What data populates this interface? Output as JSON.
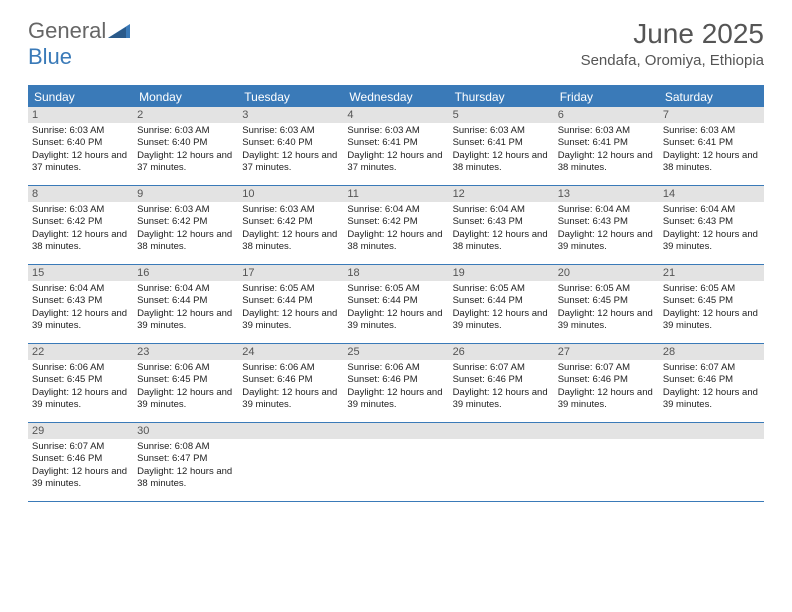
{
  "logo": {
    "text_general": "General",
    "text_blue": "Blue"
  },
  "title": "June 2025",
  "location": "Sendafa, Oromiya, Ethiopia",
  "colors": {
    "header_bar": "#3a7ab8",
    "day_number_bg": "#e3e3e3",
    "border": "#3a7ab8",
    "text_header": "#555",
    "text_body": "#222",
    "logo_blue": "#3a7ab8",
    "logo_gray": "#666"
  },
  "weekdays": [
    "Sunday",
    "Monday",
    "Tuesday",
    "Wednesday",
    "Thursday",
    "Friday",
    "Saturday"
  ],
  "weeks": [
    [
      {
        "n": "1",
        "sunrise": "6:03 AM",
        "sunset": "6:40 PM",
        "daylight": "12 hours and 37 minutes."
      },
      {
        "n": "2",
        "sunrise": "6:03 AM",
        "sunset": "6:40 PM",
        "daylight": "12 hours and 37 minutes."
      },
      {
        "n": "3",
        "sunrise": "6:03 AM",
        "sunset": "6:40 PM",
        "daylight": "12 hours and 37 minutes."
      },
      {
        "n": "4",
        "sunrise": "6:03 AM",
        "sunset": "6:41 PM",
        "daylight": "12 hours and 37 minutes."
      },
      {
        "n": "5",
        "sunrise": "6:03 AM",
        "sunset": "6:41 PM",
        "daylight": "12 hours and 38 minutes."
      },
      {
        "n": "6",
        "sunrise": "6:03 AM",
        "sunset": "6:41 PM",
        "daylight": "12 hours and 38 minutes."
      },
      {
        "n": "7",
        "sunrise": "6:03 AM",
        "sunset": "6:41 PM",
        "daylight": "12 hours and 38 minutes."
      }
    ],
    [
      {
        "n": "8",
        "sunrise": "6:03 AM",
        "sunset": "6:42 PM",
        "daylight": "12 hours and 38 minutes."
      },
      {
        "n": "9",
        "sunrise": "6:03 AM",
        "sunset": "6:42 PM",
        "daylight": "12 hours and 38 minutes."
      },
      {
        "n": "10",
        "sunrise": "6:03 AM",
        "sunset": "6:42 PM",
        "daylight": "12 hours and 38 minutes."
      },
      {
        "n": "11",
        "sunrise": "6:04 AM",
        "sunset": "6:42 PM",
        "daylight": "12 hours and 38 minutes."
      },
      {
        "n": "12",
        "sunrise": "6:04 AM",
        "sunset": "6:43 PM",
        "daylight": "12 hours and 38 minutes."
      },
      {
        "n": "13",
        "sunrise": "6:04 AM",
        "sunset": "6:43 PM",
        "daylight": "12 hours and 39 minutes."
      },
      {
        "n": "14",
        "sunrise": "6:04 AM",
        "sunset": "6:43 PM",
        "daylight": "12 hours and 39 minutes."
      }
    ],
    [
      {
        "n": "15",
        "sunrise": "6:04 AM",
        "sunset": "6:43 PM",
        "daylight": "12 hours and 39 minutes."
      },
      {
        "n": "16",
        "sunrise": "6:04 AM",
        "sunset": "6:44 PM",
        "daylight": "12 hours and 39 minutes."
      },
      {
        "n": "17",
        "sunrise": "6:05 AM",
        "sunset": "6:44 PM",
        "daylight": "12 hours and 39 minutes."
      },
      {
        "n": "18",
        "sunrise": "6:05 AM",
        "sunset": "6:44 PM",
        "daylight": "12 hours and 39 minutes."
      },
      {
        "n": "19",
        "sunrise": "6:05 AM",
        "sunset": "6:44 PM",
        "daylight": "12 hours and 39 minutes."
      },
      {
        "n": "20",
        "sunrise": "6:05 AM",
        "sunset": "6:45 PM",
        "daylight": "12 hours and 39 minutes."
      },
      {
        "n": "21",
        "sunrise": "6:05 AM",
        "sunset": "6:45 PM",
        "daylight": "12 hours and 39 minutes."
      }
    ],
    [
      {
        "n": "22",
        "sunrise": "6:06 AM",
        "sunset": "6:45 PM",
        "daylight": "12 hours and 39 minutes."
      },
      {
        "n": "23",
        "sunrise": "6:06 AM",
        "sunset": "6:45 PM",
        "daylight": "12 hours and 39 minutes."
      },
      {
        "n": "24",
        "sunrise": "6:06 AM",
        "sunset": "6:46 PM",
        "daylight": "12 hours and 39 minutes."
      },
      {
        "n": "25",
        "sunrise": "6:06 AM",
        "sunset": "6:46 PM",
        "daylight": "12 hours and 39 minutes."
      },
      {
        "n": "26",
        "sunrise": "6:07 AM",
        "sunset": "6:46 PM",
        "daylight": "12 hours and 39 minutes."
      },
      {
        "n": "27",
        "sunrise": "6:07 AM",
        "sunset": "6:46 PM",
        "daylight": "12 hours and 39 minutes."
      },
      {
        "n": "28",
        "sunrise": "6:07 AM",
        "sunset": "6:46 PM",
        "daylight": "12 hours and 39 minutes."
      }
    ],
    [
      {
        "n": "29",
        "sunrise": "6:07 AM",
        "sunset": "6:46 PM",
        "daylight": "12 hours and 39 minutes."
      },
      {
        "n": "30",
        "sunrise": "6:08 AM",
        "sunset": "6:47 PM",
        "daylight": "12 hours and 38 minutes."
      },
      {
        "empty": true
      },
      {
        "empty": true
      },
      {
        "empty": true
      },
      {
        "empty": true
      },
      {
        "empty": true
      }
    ]
  ],
  "labels": {
    "sunrise_prefix": "Sunrise: ",
    "sunset_prefix": "Sunset: ",
    "daylight_prefix": "Daylight: "
  }
}
